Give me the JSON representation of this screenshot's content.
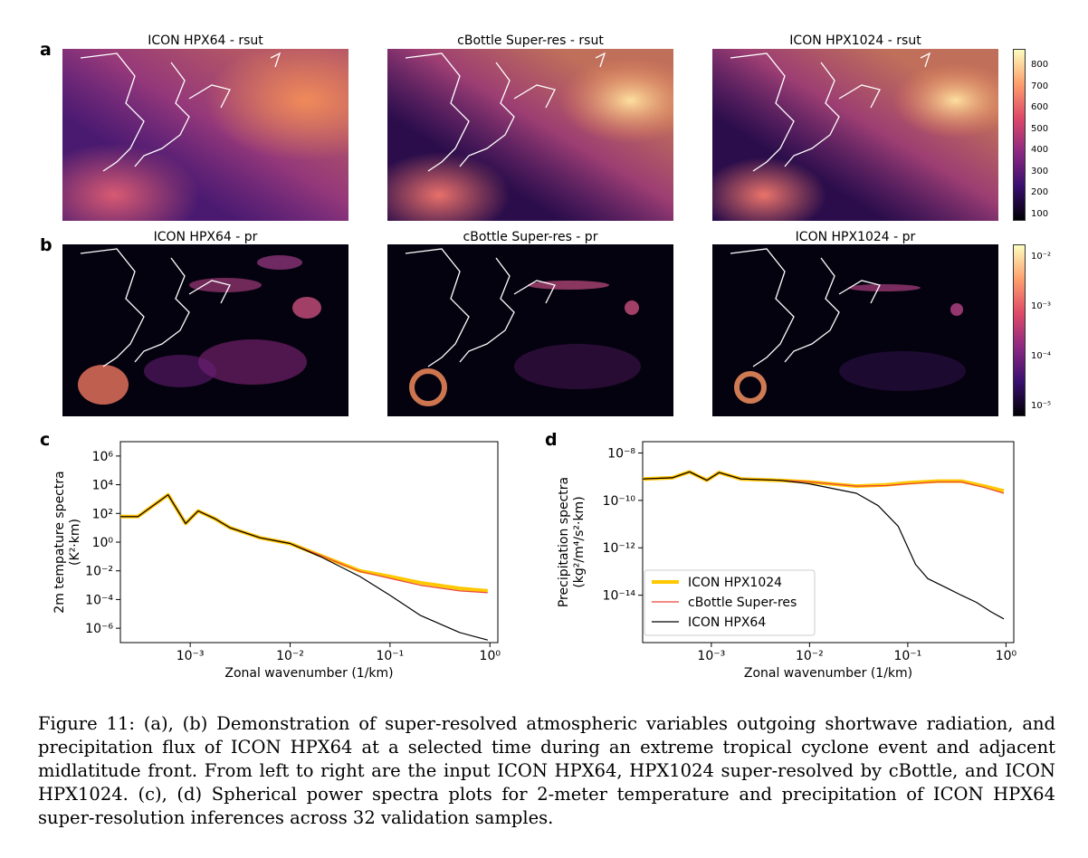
{
  "panels": {
    "a": {
      "letter": "a",
      "titles": [
        "ICON HPX64 - rsut",
        "cBottle Super-res - rsut",
        "ICON HPX1024 - rsut"
      ],
      "colorbar_ticks": [
        "800",
        "700",
        "600",
        "500",
        "400",
        "300",
        "200",
        "100"
      ]
    },
    "b": {
      "letter": "b",
      "titles": [
        "ICON HPX64 - pr",
        "cBottle Super-res - pr",
        "ICON HPX1024 - pr"
      ],
      "colorbar_ticks": [
        "10⁻²",
        "10⁻³",
        "10⁻⁴",
        "10⁻⁵"
      ]
    },
    "c": {
      "letter": "c"
    },
    "d": {
      "letter": "d"
    }
  },
  "chart_data": [
    {
      "type": "line",
      "xlabel": "Zonal wavenumber (1/km)",
      "ylabel": "2m tempature spectra",
      "ylabel2": "(K²·km)",
      "xscale": "log",
      "yscale": "log",
      "xlim": [
        0.0002,
        1.2
      ],
      "ylim": [
        1e-07,
        10000000.0
      ],
      "xticks": [
        "10⁻³",
        "10⁻²",
        "10⁻¹",
        "10⁰"
      ],
      "yticks": [
        "10⁶",
        "10⁴",
        "10²",
        "10⁰",
        "10⁻²",
        "10⁻⁴",
        "10⁻⁶"
      ],
      "series": [
        {
          "name": "ICON HPX1024",
          "color": "#ffc800",
          "x": [
            0.0002,
            0.0003,
            0.0006,
            0.0009,
            0.0012,
            0.0018,
            0.0025,
            0.005,
            0.01,
            0.02,
            0.05,
            0.1,
            0.2,
            0.5,
            0.95
          ],
          "y": [
            60,
            60,
            2000,
            20,
            150,
            40,
            10,
            2,
            0.8,
            0.12,
            0.01,
            0.004,
            0.0015,
            0.0006,
            0.0004
          ]
        },
        {
          "name": "cBottle Super-res",
          "color": "#e8453c",
          "x": [
            0.0002,
            0.0003,
            0.0006,
            0.0009,
            0.0012,
            0.0018,
            0.0025,
            0.005,
            0.01,
            0.02,
            0.05,
            0.1,
            0.2,
            0.5,
            0.95
          ],
          "y": [
            60,
            60,
            2000,
            20,
            150,
            40,
            10,
            2,
            0.8,
            0.12,
            0.009,
            0.003,
            0.001,
            0.0004,
            0.0003
          ]
        },
        {
          "name": "ICON HPX64",
          "color": "#000000",
          "x": [
            0.0002,
            0.0003,
            0.0006,
            0.0009,
            0.0012,
            0.0018,
            0.0025,
            0.005,
            0.01,
            0.02,
            0.05,
            0.1,
            0.2,
            0.5,
            0.95
          ],
          "y": [
            60,
            60,
            2000,
            20,
            150,
            40,
            10,
            2,
            0.8,
            0.1,
            0.004,
            0.0002,
            8e-06,
            5e-07,
            1.5e-07
          ]
        }
      ]
    },
    {
      "type": "line",
      "xlabel": "Zonal wavenumber (1/km)",
      "ylabel": "Precipitation spectra",
      "ylabel2": "(kg²/m⁴/s²·km)",
      "xscale": "log",
      "yscale": "log",
      "xlim": [
        0.0002,
        1.2
      ],
      "ylim": [
        1e-16,
        3e-08
      ],
      "xticks": [
        "10⁻³",
        "10⁻²",
        "10⁻¹",
        "10⁰"
      ],
      "yticks": [
        "10⁻⁸",
        "10⁻¹⁰",
        "10⁻¹²",
        "10⁻¹⁴"
      ],
      "legend": "lower-left",
      "series": [
        {
          "name": "ICON HPX1024",
          "color": "#ffc800",
          "x": [
            0.0002,
            0.0004,
            0.0006,
            0.0009,
            0.0012,
            0.002,
            0.005,
            0.01,
            0.03,
            0.06,
            0.1,
            0.2,
            0.35,
            0.6,
            0.95
          ],
          "y": [
            8e-10,
            9e-10,
            1.6e-09,
            7e-10,
            1.5e-09,
            8e-10,
            7e-10,
            6e-10,
            4e-10,
            4.5e-10,
            5.5e-10,
            6.5e-10,
            6.5e-10,
            4e-10,
            2.5e-10
          ]
        },
        {
          "name": "cBottle Super-res",
          "color": "#e8453c",
          "x": [
            0.0002,
            0.0004,
            0.0006,
            0.0009,
            0.0012,
            0.002,
            0.005,
            0.01,
            0.03,
            0.06,
            0.1,
            0.2,
            0.35,
            0.6,
            0.95
          ],
          "y": [
            8e-10,
            9e-10,
            1.6e-09,
            7e-10,
            1.5e-09,
            8e-10,
            7e-10,
            6e-10,
            4e-10,
            4.2e-10,
            5e-10,
            6e-10,
            6e-10,
            3.5e-10,
            2e-10
          ]
        },
        {
          "name": "ICON HPX64",
          "color": "#000000",
          "x": [
            0.0002,
            0.0004,
            0.0006,
            0.0009,
            0.0012,
            0.002,
            0.005,
            0.01,
            0.03,
            0.05,
            0.08,
            0.12,
            0.16,
            0.25,
            0.35,
            0.5,
            0.7,
            0.95
          ],
          "y": [
            8e-10,
            9e-10,
            1.6e-09,
            7e-10,
            1.5e-09,
            8e-10,
            7e-10,
            5e-10,
            2e-10,
            6e-11,
            8e-12,
            2e-13,
            5e-14,
            2e-14,
            1e-14,
            5e-15,
            2e-15,
            1e-15
          ]
        }
      ]
    }
  ],
  "caption": {
    "text": "Figure 11: (a), (b) Demonstration of super-resolved atmospheric variables outgoing shortwave radiation, and precipitation flux of ICON HPX64 at a selected time during an extreme tropical cyclone event and adjacent midlatitude front. From left to right are the input ICON HPX64, HPX1024 super-resolved by cBottle, and ICON HPX1024. (c), (d) Spherical power spectra plots for 2-meter temperature and precipitation of ICON HPX64 super-resolution inferences across 32 validation samples."
  }
}
